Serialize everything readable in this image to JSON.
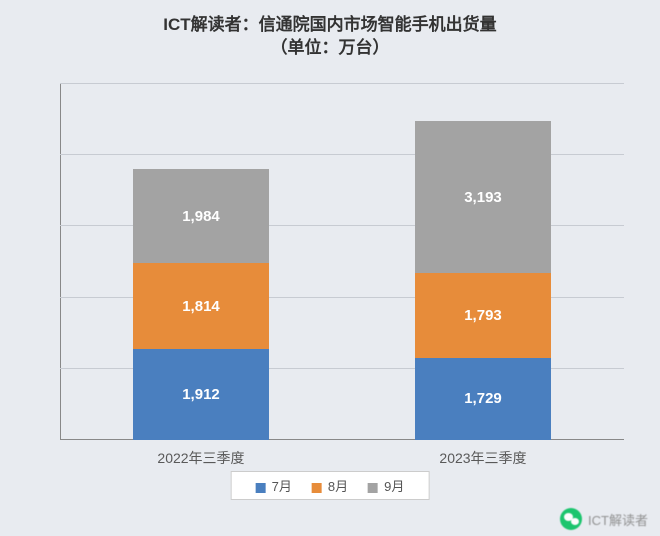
{
  "title_line1": "ICT解读者：信通院国内市场智能手机出货量",
  "title_line2": "（单位：万台）",
  "title_fontsize": 17,
  "background_color": "#e8ebf0",
  "grid_color": "#c7cbd2",
  "chart": {
    "type": "stacked-bar",
    "y_max": 7500,
    "gridline_step": 1500,
    "bar_rel_width": 0.48,
    "categories": [
      "2022年三季度",
      "2023年三季度"
    ],
    "series": [
      {
        "name": "7月",
        "color": "#4a7fbf"
      },
      {
        "name": "8月",
        "color": "#e78c3a"
      },
      {
        "name": "9月",
        "color": "#a3a3a3"
      }
    ],
    "stacks": [
      {
        "values": [
          1912,
          1814,
          1984
        ]
      },
      {
        "values": [
          1729,
          1793,
          3193
        ]
      }
    ],
    "data_label_color": "#ffffff",
    "data_label_fontsize": 15,
    "axis_label_color": "#595959",
    "axis_label_fontsize": 14,
    "legend_fontsize": 13
  },
  "footer_text": "ICT解读者"
}
